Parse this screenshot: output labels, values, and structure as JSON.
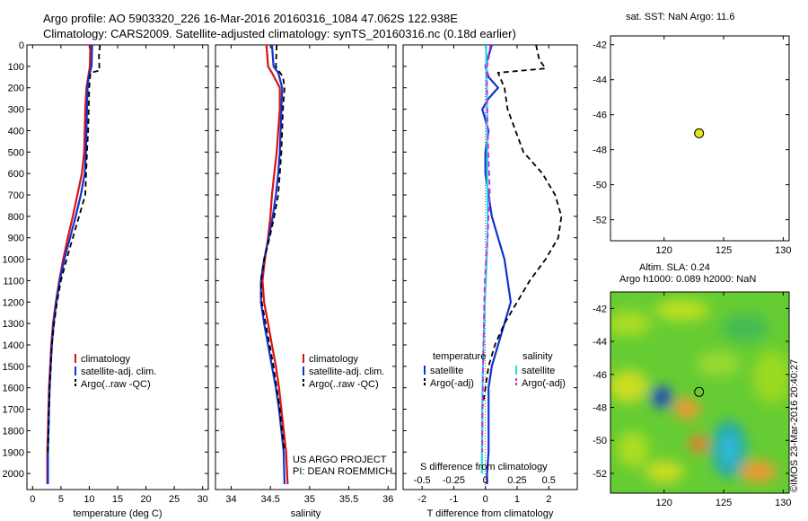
{
  "header": {
    "line1": "Argo profile: AO 5903320_226 16-Mar-2016 20160316_1084 47.062S 122.938E",
    "line2": "Climatology: CARS2009. Satellite-adjusted climatology: synTS_20160316.nc (0.18d earlier)"
  },
  "panel_sst": {
    "title": "sat. SST: NaN Argo: 11.6"
  },
  "panel_sla": {
    "title1": "Altim. SLA: 0.24",
    "title2": "Argo h1000: 0.089 h2000: NaN"
  },
  "credit": {
    "project": "US ARGO PROJECT",
    "pi": "PI: DEAN ROEMMICH",
    "stamp": "©IMOS 23-Mar-2016 20:40:27"
  },
  "colors": {
    "climatology": "#dd1111",
    "satellite": "#1133cc",
    "argo": "#000000",
    "cyan": "#22dddd",
    "magenta": "#dd22dd",
    "marker": "#e6e619"
  },
  "chart_data": [
    {
      "type": "line",
      "xlabel": "temperature (deg C)",
      "xlim": [
        -1,
        31
      ],
      "xticks": [
        0,
        5,
        10,
        15,
        20,
        25,
        30
      ],
      "ylim": [
        0,
        2075
      ],
      "yticks": [
        0,
        100,
        200,
        300,
        400,
        500,
        600,
        700,
        800,
        900,
        1000,
        1100,
        1200,
        1300,
        1400,
        1500,
        1600,
        1700,
        1800,
        1900,
        2000
      ],
      "legend": [
        "climatology",
        "satellite-adj. clim.",
        "Argo(..raw -QC)"
      ],
      "series": [
        {
          "name": "climatology",
          "style": "solid",
          "color": "#dd1111",
          "x": [
            10.2,
            10.1,
            9.8,
            9.5,
            9.3,
            9.2,
            9.1,
            8.7,
            7.9,
            7.1,
            6.2,
            5.4,
            4.7,
            4.1,
            3.6,
            3.3,
            3.1,
            2.9,
            2.8,
            2.7,
            2.6,
            2.6
          ],
          "y": [
            0,
            100,
            150,
            200,
            300,
            400,
            500,
            600,
            700,
            800,
            900,
            1000,
            1100,
            1200,
            1300,
            1400,
            1500,
            1600,
            1700,
            1800,
            1900,
            2050
          ]
        },
        {
          "name": "satellite-adj. clim.",
          "style": "solid",
          "color": "#1133cc",
          "x": [
            10.5,
            10.4,
            9.9,
            9.7,
            9.6,
            9.5,
            9.4,
            9.2,
            8.5,
            7.6,
            6.6,
            5.6,
            4.8,
            4.2,
            3.7,
            3.4,
            3.2,
            3.0,
            2.9,
            2.8,
            2.7,
            2.7
          ],
          "y": [
            0,
            100,
            150,
            200,
            300,
            400,
            500,
            600,
            700,
            800,
            900,
            1000,
            1100,
            1200,
            1300,
            1400,
            1500,
            1600,
            1700,
            1800,
            1900,
            2050
          ]
        },
        {
          "name": "Argo(..raw -QC)",
          "style": "dashed",
          "color": "#000000",
          "x": [
            11.9,
            11.7,
            11.8,
            10.2,
            10.0,
            9.9,
            9.8,
            9.6,
            9.3,
            8.2,
            7.1,
            6.0,
            5.0,
            4.3,
            3.8,
            3.4,
            3.2,
            3.0,
            2.9,
            2.8,
            2.7
          ],
          "y": [
            0,
            50,
            120,
            130,
            200,
            300,
            400,
            500,
            700,
            800,
            900,
            1000,
            1100,
            1200,
            1300,
            1400,
            1500,
            1600,
            1700,
            1800,
            1900
          ]
        }
      ]
    },
    {
      "type": "line",
      "xlabel": "salinity",
      "xlim": [
        33.8,
        36.1
      ],
      "xticks": [
        34,
        34.5,
        35,
        35.5,
        36
      ],
      "ylim": [
        0,
        2075
      ],
      "legend": [
        "climatology",
        "satellite-adj. clim.",
        "Argo(..raw -QC)"
      ],
      "series": [
        {
          "name": "climatology",
          "style": "solid",
          "color": "#dd1111",
          "x": [
            34.45,
            34.47,
            34.52,
            34.62,
            34.62,
            34.6,
            34.58,
            34.55,
            34.52,
            34.5,
            34.47,
            34.43,
            34.4,
            34.42,
            34.47,
            34.52,
            34.57,
            34.61,
            34.64,
            34.67,
            34.7,
            34.72
          ],
          "y": [
            0,
            100,
            130,
            200,
            300,
            400,
            500,
            600,
            700,
            800,
            900,
            1000,
            1100,
            1200,
            1300,
            1400,
            1500,
            1600,
            1700,
            1800,
            1900,
            2050
          ]
        },
        {
          "name": "satellite-adj. clim.",
          "style": "solid",
          "color": "#1133cc",
          "x": [
            34.52,
            34.54,
            34.6,
            34.65,
            34.64,
            34.63,
            34.62,
            34.6,
            34.57,
            34.53,
            34.48,
            34.42,
            34.38,
            34.38,
            34.42,
            34.47,
            34.52,
            34.57,
            34.61,
            34.64,
            34.67,
            34.68
          ],
          "y": [
            0,
            100,
            130,
            200,
            300,
            400,
            500,
            600,
            700,
            800,
            900,
            1000,
            1100,
            1200,
            1300,
            1400,
            1500,
            1600,
            1700,
            1800,
            1900,
            2050
          ]
        },
        {
          "name": "Argo(..raw -QC)",
          "style": "dashed",
          "color": "#000000",
          "x": [
            34.58,
            34.57,
            34.66,
            34.68,
            34.66,
            34.65,
            34.64,
            34.62,
            34.6,
            34.55,
            34.49,
            34.42,
            34.38,
            34.39,
            34.44,
            34.49,
            34.54,
            34.58,
            34.62,
            34.65,
            34.68
          ],
          "y": [
            0,
            100,
            150,
            200,
            300,
            400,
            500,
            600,
            700,
            800,
            900,
            1000,
            1100,
            1200,
            1300,
            1400,
            1500,
            1600,
            1700,
            1800,
            1900
          ]
        }
      ]
    },
    {
      "type": "line",
      "xlabel": "T difference from climatology",
      "xlabel_top": "S difference from climatology",
      "xlim": [
        -2.6,
        2.9
      ],
      "xticks": [
        -2,
        -1,
        0,
        1,
        2
      ],
      "xticks_s_labels": [
        "-0.5",
        "-0.25",
        "0",
        "0.25",
        "0.5"
      ],
      "ylim": [
        0,
        2075
      ],
      "legend_temperature_title": "temperature",
      "legend_salinity_title": "salinity",
      "legend": [
        "satellite",
        "Argo(-adj)",
        "satellite",
        "Argo(-adj)"
      ],
      "series": [
        {
          "name": "temperature satellite",
          "style": "solid",
          "color": "#1133cc",
          "x": [
            0.2,
            0.0,
            0.1,
            0.4,
            0.1,
            -0.1,
            0.1,
            0.0,
            0.0,
            0.1,
            0.2,
            0.4,
            0.6,
            0.7,
            0.8,
            0.6,
            0.4,
            0.2,
            0.1,
            0.1,
            0.1,
            0.1,
            0.05,
            0.05
          ],
          "y": [
            0,
            100,
            150,
            200,
            250,
            300,
            400,
            500,
            600,
            700,
            800,
            900,
            1000,
            1100,
            1200,
            1300,
            1400,
            1500,
            1600,
            1700,
            1800,
            1900,
            2000,
            2050
          ]
        },
        {
          "name": "temperature Argo(-adj)",
          "style": "dashed",
          "color": "#000000",
          "x": [
            1.6,
            1.7,
            1.9,
            0.4,
            0.6,
            0.7,
            1.2,
            1.8,
            2.2,
            2.4,
            2.3,
            1.9,
            1.4,
            1.0,
            0.6,
            0.3,
            0.1,
            0.0,
            -0.1,
            -0.1,
            -0.1
          ],
          "y": [
            0,
            70,
            110,
            130,
            200,
            300,
            500,
            600,
            700,
            800,
            900,
            1000,
            1100,
            1200,
            1300,
            1400,
            1500,
            1600,
            1700,
            1800,
            1900
          ]
        },
        {
          "name": "salinity satellite",
          "style": "solid",
          "color": "#22dddd",
          "x": [
            0.02,
            0.03,
            0.04,
            0.05,
            0.05,
            0.06,
            0.06,
            0.06,
            0.07,
            0.06,
            0.04,
            0.01,
            -0.02,
            -0.04,
            -0.06,
            -0.08,
            -0.09,
            -0.1,
            -0.1,
            -0.11,
            -0.11
          ],
          "y": [
            0,
            100,
            200,
            300,
            400,
            500,
            600,
            700,
            800,
            900,
            1000,
            1100,
            1200,
            1300,
            1400,
            1500,
            1600,
            1700,
            1800,
            1900,
            2000
          ]
        },
        {
          "name": "salinity Argo(-adj)",
          "style": "dashed",
          "color": "#dd22dd",
          "x": [
            0.15,
            0.12,
            0.05,
            0.05,
            0.06,
            0.07,
            0.09,
            0.12,
            0.14,
            0.1,
            0.07,
            0.02,
            -0.02,
            -0.04,
            -0.05,
            -0.06,
            -0.07,
            -0.08,
            -0.09,
            -0.1,
            -0.1
          ],
          "y": [
            0,
            50,
            100,
            200,
            300,
            400,
            500,
            600,
            700,
            800,
            900,
            1000,
            1100,
            1200,
            1300,
            1400,
            1500,
            1600,
            1700,
            1800,
            1900
          ]
        }
      ]
    },
    {
      "type": "scatter",
      "title": "sat. SST: NaN Argo: 11.6",
      "xlim": [
        115.5,
        130.5
      ],
      "ylim": [
        -53.2,
        -41.5
      ],
      "xticks": [
        120,
        125,
        130
      ],
      "yticks": [
        -42,
        -44,
        -46,
        -48,
        -50,
        -52
      ],
      "points": [
        {
          "x": 122.938,
          "y": -47.062
        }
      ]
    },
    {
      "type": "heatmap",
      "title": "Altim. SLA: 0.24 Argo h1000: 0.089 h2000: NaN",
      "xlim": [
        115.5,
        130.5
      ],
      "ylim": [
        -53.2,
        -41.0
      ],
      "xticks": [
        120,
        125,
        130
      ],
      "yticks": [
        -42,
        -44,
        -46,
        -48,
        -50,
        -52
      ],
      "points": [
        {
          "x": 122.938,
          "y": -47.062
        }
      ]
    }
  ]
}
